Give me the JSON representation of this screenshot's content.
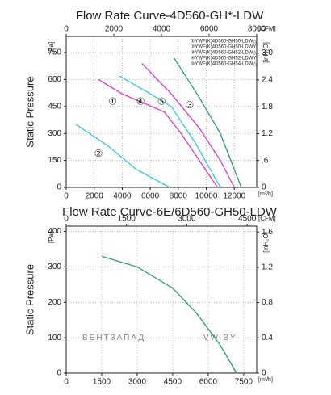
{
  "chart_data": [
    {
      "type": "line",
      "title": "Flow Rate Curve-4D560-GH*-LDW",
      "ylabel": "Static Pressure",
      "yunit": "[Pa]",
      "xunit": "[m³/h]",
      "x2unit": "[CFM]",
      "y2unit": "[inH₂O]",
      "xlim": [
        0,
        13600
      ],
      "xticks": [
        0,
        2000,
        4000,
        6000,
        8000,
        10000,
        12000
      ],
      "x2lim": [
        0,
        8000
      ],
      "x2ticks": [
        0,
        2000,
        4000,
        6000,
        8000
      ],
      "ylim": [
        0,
        840
      ],
      "yticks": [
        0,
        150,
        300,
        450,
        600,
        750
      ],
      "y2lim": [
        0,
        3.37
      ],
      "y2ticks": [
        0,
        {
          "value": 0.6,
          "label": ".6"
        },
        1.2,
        1.8,
        2.4,
        {
          "value": 3,
          "label": "3.0"
        }
      ],
      "grid": true,
      "legend": "upper right",
      "series": [
        {
          "name": "①YWF(K)4D560-GH50-LDW△",
          "marker_label": "①",
          "color": "#e03cc8",
          "x": [
            2300,
            4000,
            5800,
            7000,
            8200,
            9500,
            10800
          ],
          "values": [
            600,
            520,
            460,
            420,
            300,
            150,
            0
          ]
        },
        {
          "name": "②YWF(K)4D560-GH50-LDWY",
          "marker_label": "②",
          "color": "#38c8e0",
          "x": [
            700,
            3000,
            5000,
            7400
          ],
          "values": [
            350,
            230,
            100,
            0
          ]
        },
        {
          "name": "③YWF(K)4D560-GH52-LDW△",
          "marker_label": "③",
          "color": "#2e9e6a",
          "x": [
            7700,
            9500,
            11000,
            12500
          ],
          "values": [
            720,
            500,
            300,
            0
          ]
        },
        {
          "name": "④YWF(K)4D560-GH52-LDWY",
          "marker_label": "④",
          "color": "#38c8e0",
          "x": [
            3800,
            6000,
            7500,
            9200,
            11000
          ],
          "values": [
            620,
            520,
            450,
            250,
            0
          ]
        },
        {
          "name": "⑤YWF(K)4D560-GH54-LDW△",
          "marker_label": "⑤",
          "color": "#e03cc8",
          "x": [
            5400,
            7500,
            9500,
            11000,
            12000
          ],
          "values": [
            690,
            520,
            330,
            150,
            0
          ]
        }
      ]
    },
    {
      "type": "line",
      "title": "Flow Rate Curve-6E/6D560-GH50-LDW",
      "ylabel": "Static Pressure",
      "yunit": "[Pa]",
      "xunit": "[m³/h]",
      "x2unit": "[CFM]",
      "y2unit": "[inH₂O]",
      "xlim": [
        0,
        8050
      ],
      "xticks": [
        0,
        1500,
        3000,
        4500,
        6000,
        7500
      ],
      "x2lim": [
        0,
        4738
      ],
      "x2ticks": [
        0,
        1500,
        3000,
        4500
      ],
      "ylim": [
        0,
        415
      ],
      "yticks": [
        0,
        100,
        200,
        300,
        400
      ],
      "y2lim": [
        0,
        1.666
      ],
      "y2ticks": [
        0,
        0.4,
        0.8,
        1.2,
        1.6
      ],
      "grid": true,
      "watermark": [
        "ВЕНТЗАПАД",
        "VW.BY"
      ],
      "series": [
        {
          "color": "#2e9e6a",
          "x": [
            1500,
            3000,
            4500,
            5500,
            6500,
            7200
          ],
          "values": [
            330,
            300,
            240,
            170,
            80,
            0
          ]
        }
      ]
    }
  ]
}
